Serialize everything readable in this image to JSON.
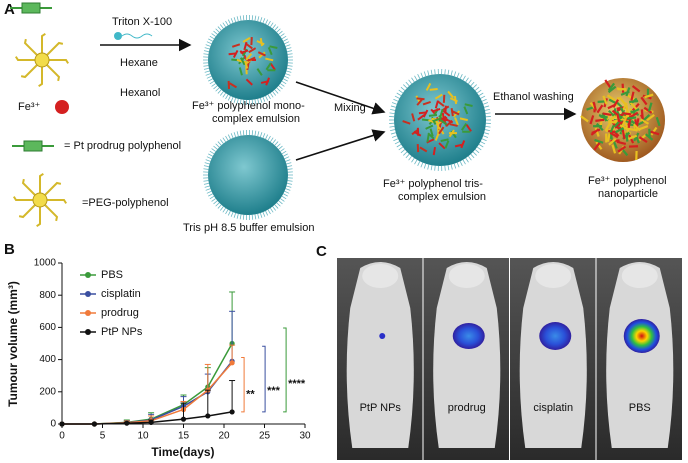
{
  "panel_a": {
    "label": "A",
    "triton": "Triton X-100",
    "hexane": "Hexane",
    "hexanol": "Hexanol",
    "fe": "Fe³⁺",
    "mono": [
      "Fe³⁺ polyphenol mono-",
      "complex emulsion"
    ],
    "pt_legend": "= Pt prodrug polyphenol",
    "peg_legend": "=PEG-polyphenol",
    "tris_buffer": "Tris pH 8.5 buffer emulsion",
    "mixing": "Mixing",
    "tris": [
      "Fe³⁺ polyphenol tris-",
      "complex emulsion"
    ],
    "washing": "Ethanol washing",
    "nanoparticle": [
      "Fe³⁺ polyphenol",
      "nanoparticle"
    ]
  },
  "chart_data": {
    "type": "line",
    "panel": "B",
    "xlabel": "Time(days)",
    "ylabel": "Tumour volume (mm³)",
    "x": [
      0,
      4,
      8,
      11,
      15,
      18,
      21
    ],
    "xlim": [
      0,
      30
    ],
    "xticks": [
      0,
      5,
      10,
      15,
      20,
      25,
      30
    ],
    "ylim": [
      0,
      1000
    ],
    "yticks": [
      0,
      200,
      400,
      600,
      800,
      1000
    ],
    "legend": "upper left",
    "series": [
      {
        "name": "PBS",
        "color": "#3a9a3a",
        "values": [
          0,
          0,
          10,
          30,
          120,
          230,
          500
        ],
        "errors": [
          0,
          0,
          15,
          40,
          60,
          120,
          320
        ]
      },
      {
        "name": "cisplatin",
        "color": "#3a4fa0",
        "values": [
          0,
          0,
          8,
          25,
          110,
          200,
          390
        ],
        "errors": [
          0,
          0,
          12,
          35,
          60,
          110,
          310
        ]
      },
      {
        "name": "prodrug",
        "color": "#f07a3a",
        "values": [
          0,
          0,
          8,
          20,
          90,
          210,
          380
        ],
        "errors": [
          0,
          0,
          10,
          30,
          50,
          160,
          110
        ]
      },
      {
        "name": "PtP NPs",
        "color": "#111111",
        "values": [
          0,
          0,
          5,
          10,
          30,
          50,
          75
        ],
        "errors": [
          0,
          0,
          5,
          15,
          100,
          160,
          195
        ]
      }
    ],
    "annotations": [
      "**",
      "***",
      "****"
    ]
  },
  "panel_c": {
    "label": "C",
    "labels": [
      "PtP NPs",
      "prodrug",
      "cisplatin",
      "PBS"
    ]
  }
}
